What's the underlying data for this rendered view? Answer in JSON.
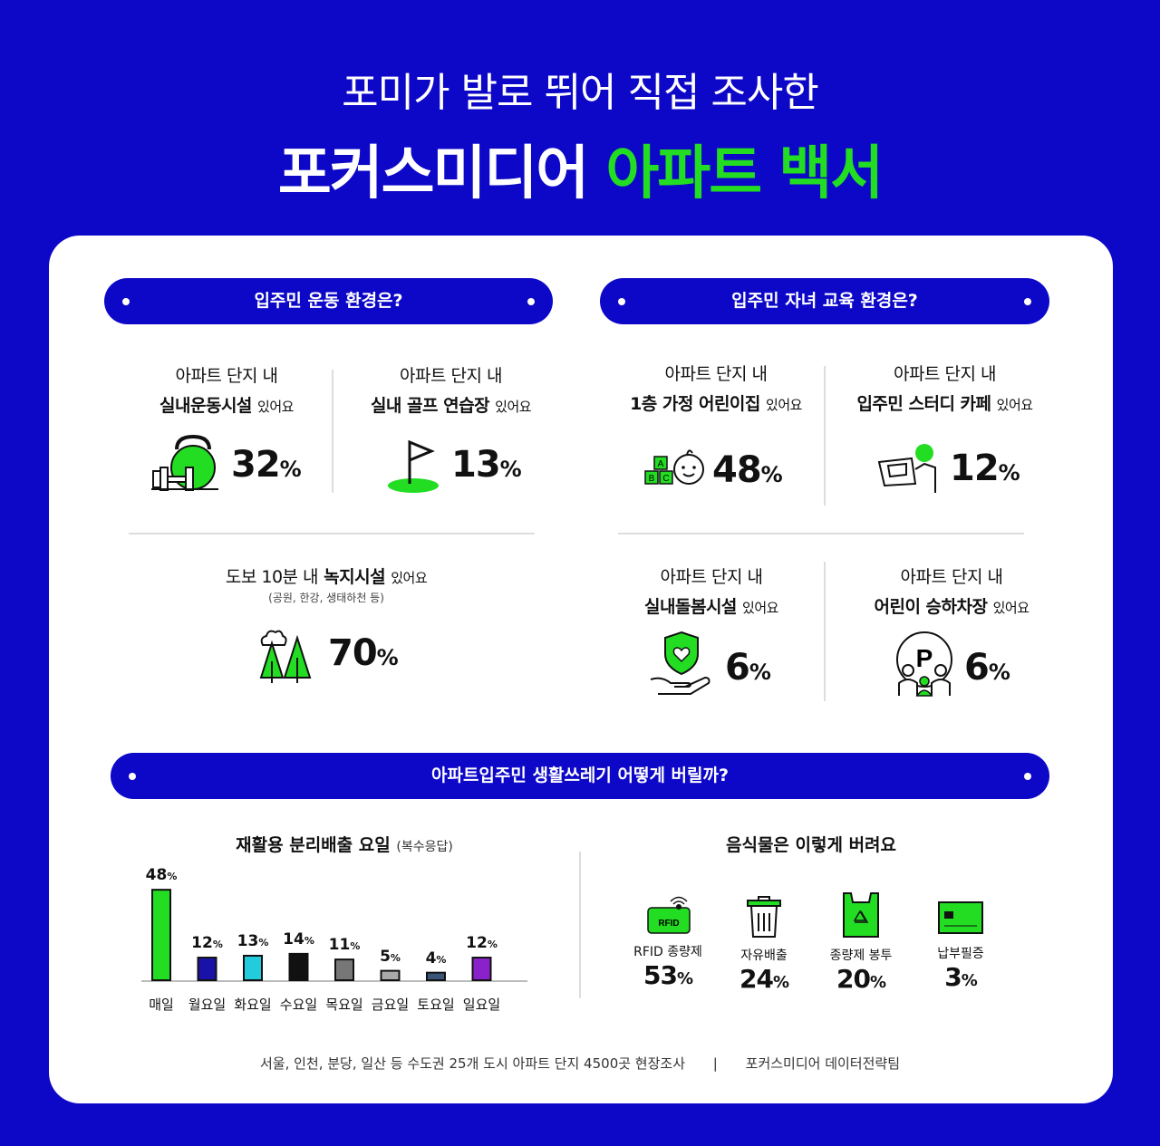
{
  "header": {
    "subtitle": "포미가 발로 뛰어 직접 조사한",
    "title_main": "포커스미디어",
    "title_accent": "아파트 백서"
  },
  "colors": {
    "brand_blue": "#0d07c8",
    "accent_green": "#22dd22",
    "white": "#ffffff"
  },
  "exercise": {
    "heading": "입주민 운동 환경은?",
    "items": [
      {
        "l1": "아파트 단지 내",
        "l2": "실내운동시설",
        "suffix": "있어요",
        "value": "32",
        "unit": "%",
        "icon": "kettlebell-icon"
      },
      {
        "l1": "아파트 단지 내",
        "l2": "실내 골프 연습장",
        "suffix": "있어요",
        "value": "13",
        "unit": "%",
        "icon": "golf-flag-icon"
      },
      {
        "l1": "도보 10분 내",
        "l2": "녹지시설",
        "suffix": "있어요",
        "note": "(공원, 한강, 생태하천 등)",
        "value": "70",
        "unit": "%",
        "icon": "trees-icon"
      }
    ]
  },
  "education": {
    "heading": "입주민 자녀 교육 환경은?",
    "items": [
      {
        "l1": "아파트 단지 내",
        "l2": "1층 가정 어린이집",
        "suffix": "있어요",
        "value": "48",
        "unit": "%",
        "icon": "baby-blocks-icon"
      },
      {
        "l1": "아파트 단지 내",
        "l2": "입주민 스터디 카페",
        "suffix": "있어요",
        "value": "12",
        "unit": "%",
        "icon": "study-desk-icon"
      },
      {
        "l1": "아파트 단지 내",
        "l2": "실내돌봄시설",
        "suffix": "있어요",
        "value": "6",
        "unit": "%",
        "icon": "care-hand-icon"
      },
      {
        "l1": "아파트 단지 내",
        "l2": "어린이 승하차장",
        "suffix": "있어요",
        "value": "6",
        "unit": "%",
        "icon": "parking-family-icon"
      }
    ]
  },
  "waste": {
    "heading": "아파트입주민 생활쓰레기 어떻게 버릴까?",
    "recycle_title": "재활용 분리배출 요일",
    "recycle_note": "(복수응답)",
    "food_title": "음식물은 이렇게 버려요",
    "food": [
      {
        "label": "RFID 종량제",
        "value": "53",
        "unit": "%",
        "icon": "rfid-icon",
        "icon_text": "RFID"
      },
      {
        "label": "자유배출",
        "value": "24",
        "unit": "%",
        "icon": "trash-can-icon"
      },
      {
        "label": "종량제 봉투",
        "value": "20",
        "unit": "%",
        "icon": "recycle-bag-icon"
      },
      {
        "label": "납부필증",
        "value": "3",
        "unit": "%",
        "icon": "sticker-card-icon"
      }
    ]
  },
  "chart_data": {
    "type": "bar",
    "title": "재활용 분리배출 요일",
    "subtitle": "(복수응답)",
    "categories": [
      "매일",
      "월요일",
      "화요일",
      "수요일",
      "목요일",
      "금요일",
      "토요일",
      "일요일"
    ],
    "values": [
      48,
      12,
      13,
      14,
      11,
      5,
      4,
      12
    ],
    "value_labels": [
      "48",
      "12",
      "13",
      "14",
      "11",
      "5",
      "4",
      "12"
    ],
    "unit": "%",
    "bar_colors": [
      "#22dd22",
      "#1a12a8",
      "#22ccdd",
      "#111111",
      "#777777",
      "#aaaaaa",
      "#3b5579",
      "#8a22cc"
    ],
    "ylim": [
      0,
      50
    ],
    "xlabel": "",
    "ylabel": ""
  },
  "footer": {
    "source": "서울, 인천, 분당, 일산 등 수도권 25개 도시 아파트 단지 4500곳 현장조사",
    "separator": "|",
    "team": "포커스미디어 데이터전략팀"
  }
}
